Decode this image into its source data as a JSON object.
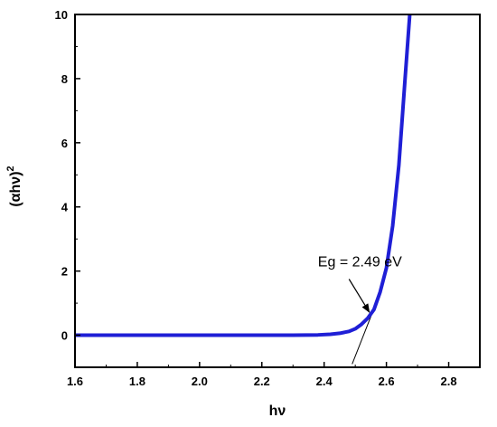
{
  "chart_data": {
    "type": "line",
    "title": "",
    "xlabel": "hν",
    "ylabel_base": "(αhν)",
    "ylabel_sup": "2",
    "xlim": [
      1.6,
      2.9
    ],
    "ylim": [
      -1,
      10
    ],
    "xticks": [
      1.6,
      1.8,
      2.0,
      2.2,
      2.4,
      2.6,
      2.8
    ],
    "xtick_labels": [
      "1.6",
      "1.8",
      "2.0",
      "2.2",
      "2.4",
      "2.6",
      "2.8"
    ],
    "yticks": [
      0,
      2,
      4,
      6,
      8,
      10
    ],
    "ytick_labels": [
      "0",
      "2",
      "4",
      "6",
      "8",
      "10"
    ],
    "grid": false,
    "series": [
      {
        "color": "#1f1fd6",
        "x": [
          1.6,
          2.0,
          2.3,
          2.38,
          2.42,
          2.45,
          2.48,
          2.5,
          2.52,
          2.54,
          2.56,
          2.58,
          2.6,
          2.62,
          2.64,
          2.66,
          2.675
        ],
        "y": [
          0,
          0,
          0,
          0.01,
          0.03,
          0.06,
          0.12,
          0.2,
          0.34,
          0.53,
          0.8,
          1.35,
          2.1,
          3.4,
          5.3,
          8.0,
          10.0
        ]
      }
    ],
    "tangent_line": {
      "x": [
        2.49,
        2.565
      ],
      "y": [
        -0.9,
        0.95
      ],
      "color": "#000000"
    },
    "annotation": {
      "text": "Eg = 2.49 eV",
      "text_at": [
        2.38,
        2.15
      ],
      "arrow_from": [
        2.48,
        1.75
      ],
      "arrow_to": [
        2.545,
        0.72
      ]
    }
  }
}
